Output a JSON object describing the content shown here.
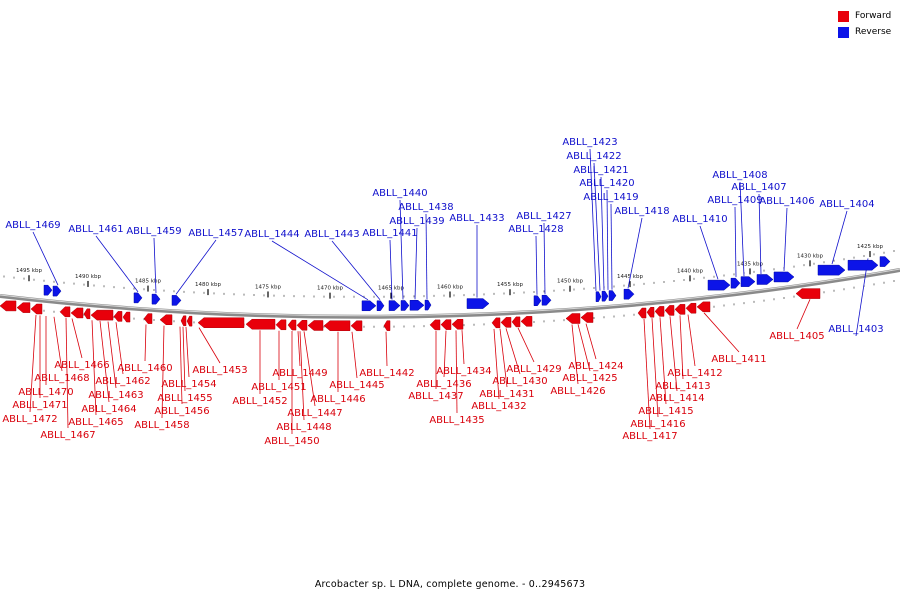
{
  "legend": {
    "forward_label": "Forward",
    "reverse_label": "Reverse",
    "forward_color": "#e8000b",
    "reverse_color": "#0c14e8"
  },
  "caption": "Arcobacter sp. L DNA, complete genome. - 0..2945673",
  "colors": {
    "forward_label": "#d9000b",
    "reverse_label": "#1010cc",
    "backbone": "#8a8a8a"
  },
  "scale_ticks": [
    "1495 kbp",
    "1490 kbp",
    "1485 kbp",
    "1480 kbp",
    "1475 kbp",
    "1470 kbp",
    "1465 kbp",
    "1460 kbp",
    "1455 kbp",
    "1450 kbp",
    "1445 kbp",
    "1440 kbp",
    "1435 kbp",
    "1430 kbp",
    "1425 kbp"
  ],
  "reverse_genes": [
    "ABLL_1469",
    "ABLL_1461",
    "ABLL_1459",
    "ABLL_1457",
    "ABLL_1444",
    "ABLL_1443",
    "ABLL_1441",
    "ABLL_1440",
    "ABLL_1439",
    "ABLL_1438",
    "ABLL_1433",
    "ABLL_1428",
    "ABLL_1427",
    "ABLL_1423",
    "ABLL_1422",
    "ABLL_1421",
    "ABLL_1420",
    "ABLL_1419",
    "ABLL_1418",
    "ABLL_1410",
    "ABLL_1409",
    "ABLL_1408",
    "ABLL_1407",
    "ABLL_1406",
    "ABLL_1404",
    "ABLL_1403"
  ],
  "forward_genes": [
    "ABLL_1466",
    "ABLL_1468",
    "ABLL_1470",
    "ABLL_1471",
    "ABLL_1472",
    "ABLL_1467",
    "ABLL_1460",
    "ABLL_1462",
    "ABLL_1463",
    "ABLL_1464",
    "ABLL_1465",
    "ABLL_1453",
    "ABLL_1454",
    "ABLL_1455",
    "ABLL_1456",
    "ABLL_1458",
    "ABLL_1449",
    "ABLL_1451",
    "ABLL_1452",
    "ABLL_1445",
    "ABLL_1446",
    "ABLL_1447",
    "ABLL_1448",
    "ABLL_1450",
    "ABLL_1442",
    "ABLL_1434",
    "ABLL_1436",
    "ABLL_1437",
    "ABLL_1435",
    "ABLL_1429",
    "ABLL_1430",
    "ABLL_1431",
    "ABLL_1432",
    "ABLL_1424",
    "ABLL_1425",
    "ABLL_1426",
    "ABLL_1411",
    "ABLL_1412",
    "ABLL_1413",
    "ABLL_1414",
    "ABLL_1415",
    "ABLL_1416",
    "ABLL_1417",
    "ABLL_1405"
  ]
}
